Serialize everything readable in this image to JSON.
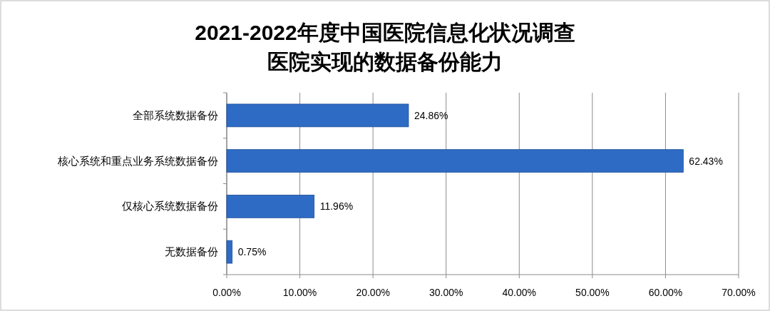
{
  "chart_data": {
    "type": "bar",
    "orientation": "horizontal",
    "title": "2021-2022年度中国医院信息化状况调查",
    "subtitle": "医院实现的数据备份能力",
    "categories": [
      "全部系统数据备份",
      "核心系统和重点业务系统数据备份",
      "仅核心系统数据备份",
      "无数据备份"
    ],
    "values": [
      24.86,
      62.43,
      11.96,
      0.75
    ],
    "value_labels": [
      "24.86%",
      "62.43%",
      "11.96%",
      "0.75%"
    ],
    "color": "#2e6bc4",
    "xlim": [
      0,
      70
    ],
    "xticks": [
      {
        "value": 0,
        "label": "0.00%"
      },
      {
        "value": 10,
        "label": "10.00%"
      },
      {
        "value": 20,
        "label": "20.00%"
      },
      {
        "value": 30,
        "label": "30.00%"
      },
      {
        "value": 40,
        "label": "40.00%"
      },
      {
        "value": 50,
        "label": "50.00%"
      },
      {
        "value": 60,
        "label": "60.00%"
      },
      {
        "value": 70,
        "label": "70.00%"
      }
    ],
    "grid": "x"
  }
}
